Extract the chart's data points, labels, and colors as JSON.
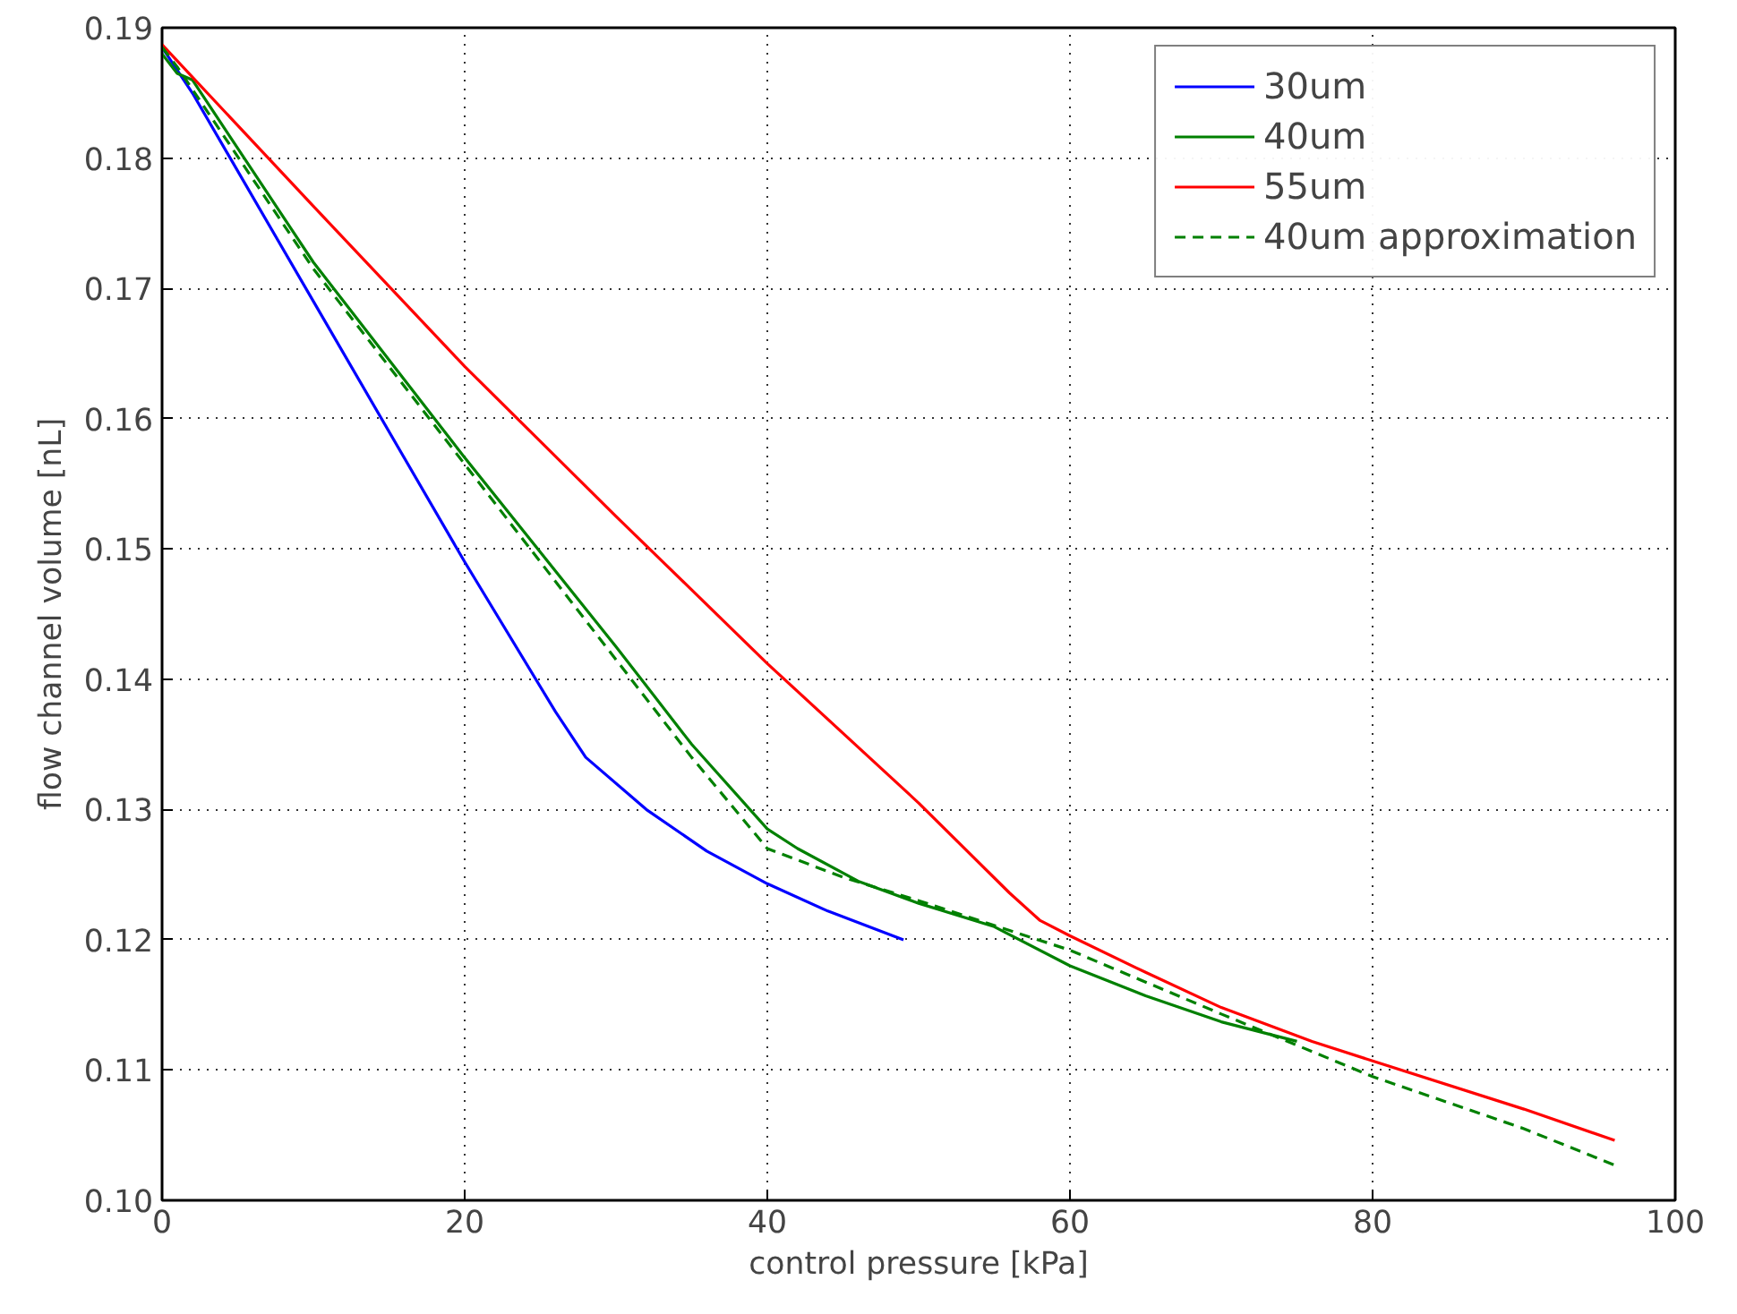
{
  "chart_data": {
    "type": "line",
    "xlabel": "control pressure [kPa]",
    "ylabel": "flow channel volume [nL]",
    "xlim": [
      0,
      100
    ],
    "ylim": [
      0.1,
      0.19
    ],
    "xticks": [
      0,
      20,
      40,
      60,
      80,
      100
    ],
    "yticks": [
      {
        "value": 0.1,
        "label": "0.10"
      },
      0.11,
      0.12,
      0.13,
      0.14,
      0.15,
      0.16,
      0.17,
      0.18,
      0.19
    ],
    "grid": true,
    "legend": "top right",
    "series": [
      {
        "name": "30um",
        "color": "#0000ff",
        "line_style": "solid",
        "x": [
          0,
          2,
          10,
          20,
          26,
          28,
          32,
          36,
          40,
          44,
          49
        ],
        "values": [
          0.1885,
          0.185,
          0.169,
          0.149,
          0.1375,
          0.134,
          0.13,
          0.1268,
          0.1243,
          0.1222,
          0.12
        ]
      },
      {
        "name": "40um",
        "color": "#008000",
        "line_style": "solid",
        "x": [
          0,
          1,
          2,
          10,
          20,
          30,
          35,
          40,
          42,
          46,
          50,
          55,
          60,
          65,
          70,
          75
        ],
        "values": [
          0.188,
          0.1865,
          0.186,
          0.172,
          0.157,
          0.1425,
          0.135,
          0.1285,
          0.127,
          0.1245,
          0.1228,
          0.121,
          0.118,
          0.1157,
          0.1137,
          0.1122
        ]
      },
      {
        "name": "55um",
        "color": "#ff0000",
        "line_style": "solid",
        "x": [
          0,
          10,
          20,
          30,
          40,
          50,
          56,
          58,
          60,
          65,
          70,
          76,
          80,
          90,
          96
        ],
        "values": [
          0.1887,
          0.1763,
          0.164,
          0.1525,
          0.1412,
          0.1305,
          0.1236,
          0.1215,
          0.1203,
          0.1175,
          0.1148,
          0.1122,
          0.1107,
          0.107,
          0.1046
        ]
      },
      {
        "name": "40um approximation",
        "color": "#008000",
        "line_style": "dashed",
        "x": [
          0,
          1,
          10,
          20,
          30,
          35,
          40,
          45,
          50,
          60,
          70,
          80,
          90,
          96
        ],
        "values": [
          0.1885,
          0.187,
          0.1715,
          0.1565,
          0.1415,
          0.134,
          0.127,
          0.1248,
          0.123,
          0.1192,
          0.1143,
          0.1095,
          0.1055,
          0.1027
        ]
      }
    ]
  }
}
